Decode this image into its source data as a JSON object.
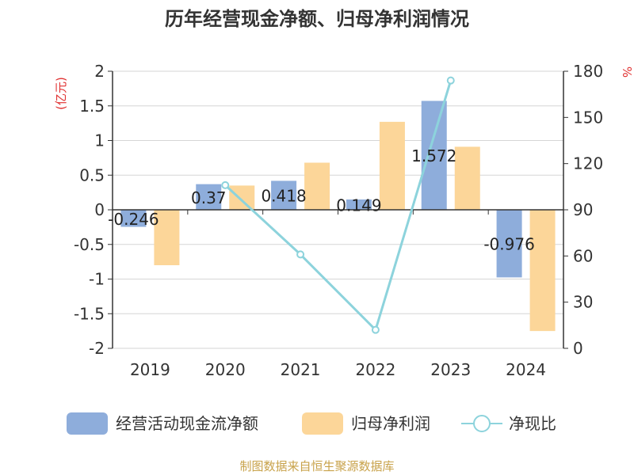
{
  "chart_data": {
    "type": "bar+line",
    "title": "历年经营现金净额、归母净利润情况",
    "categories": [
      "2019",
      "2020",
      "2021",
      "2022",
      "2023",
      "2024"
    ],
    "y_left": {
      "label": "(亿元)",
      "ylim": [
        -2,
        2
      ],
      "ticks": [
        "2",
        "1.5",
        "1",
        "0.5",
        "0",
        "-0.5",
        "-1",
        "-1.5",
        "-2"
      ]
    },
    "y_right": {
      "label": "%",
      "ylim": [
        0,
        180
      ],
      "ticks": [
        "180",
        "150",
        "120",
        "90",
        "60",
        "30",
        "0"
      ]
    },
    "series": [
      {
        "name": "经营活动现金流净额",
        "type": "bar",
        "axis": "left",
        "values": [
          -0.246,
          0.37,
          0.418,
          0.149,
          1.572,
          -0.976
        ],
        "labels": [
          "-0.246",
          "0.37",
          "0.418",
          "0.149",
          "1.572",
          "-0.976"
        ]
      },
      {
        "name": "归母净利润",
        "type": "bar",
        "axis": "left",
        "values": [
          -0.8,
          0.35,
          0.68,
          1.27,
          0.91,
          -1.75
        ]
      },
      {
        "name": "净现比",
        "type": "line",
        "axis": "right",
        "values": [
          null,
          106,
          61,
          12,
          174,
          null
        ]
      }
    ],
    "legend": "bottom",
    "grid": true
  },
  "colors": {
    "bar_cash": "#8eaddb",
    "bar_profit": "#fcd699",
    "line": "#8dd3dc",
    "axis_label_red": "#e03030",
    "source": "#c8a24a"
  },
  "source": "制图数据来自恒生聚源数据库"
}
